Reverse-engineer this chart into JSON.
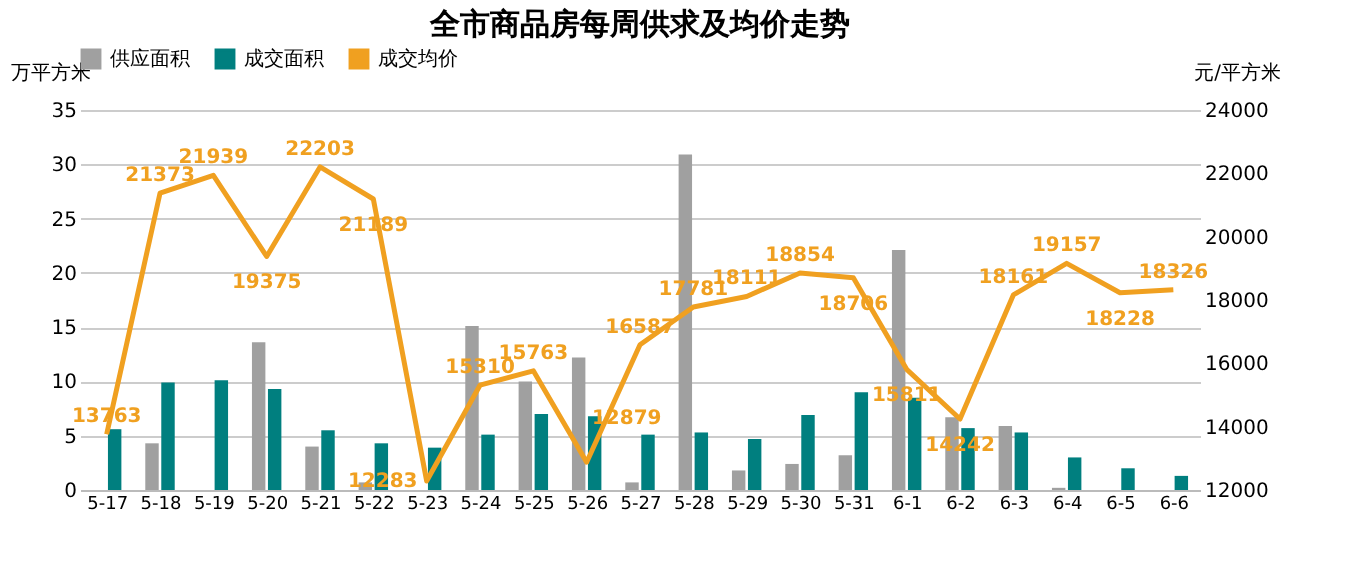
{
  "chart_data": {
    "type": "bar",
    "title": "全市商品房每周供求及均价走势",
    "ylabel": "万平方米",
    "y2label": "元/平方米",
    "categories": [
      "5-17",
      "5-18",
      "5-19",
      "5-20",
      "5-21",
      "5-22",
      "5-23",
      "5-24",
      "5-25",
      "5-26",
      "5-27",
      "5-28",
      "5-29",
      "5-30",
      "5-31",
      "6-1",
      "6-2",
      "6-3",
      "6-4",
      "6-5",
      "6-6"
    ],
    "series": [
      {
        "name": "供应面积",
        "color": "#a0a0a0",
        "values": [
          0,
          4.3,
          0,
          13.6,
          4.0,
          0.7,
          0,
          15.1,
          10.0,
          12.2,
          0.7,
          30.9,
          1.8,
          2.4,
          3.2,
          22.1,
          6.7,
          5.9,
          0.2,
          0,
          0
        ]
      },
      {
        "name": "成交面积",
        "color": "#007f7f",
        "values": [
          5.6,
          9.9,
          10.1,
          9.3,
          5.5,
          4.3,
          3.9,
          5.1,
          7.0,
          6.8,
          5.1,
          5.3,
          4.7,
          6.9,
          9.0,
          8.5,
          5.7,
          5.3,
          3.0,
          2.0,
          1.3
        ]
      },
      {
        "name": "成交均价",
        "type": "line",
        "axis": "y2",
        "color": "#f0a020",
        "data_labels": true,
        "values": [
          13763,
          21373,
          21939,
          19375,
          22203,
          21189,
          12283,
          15310,
          15763,
          12879,
          16587,
          17781,
          18111,
          18854,
          18706,
          15811,
          14242,
          18161,
          19157,
          18228,
          18326
        ]
      }
    ],
    "ylim": [
      0,
      35
    ],
    "yticks": [
      0,
      5,
      10,
      15,
      20,
      25,
      30,
      35
    ],
    "y2lim": [
      12000,
      24000
    ],
    "y2ticks": [
      12000,
      14000,
      16000,
      18000,
      20000,
      22000,
      24000
    ],
    "grid": "y",
    "legend": "top"
  }
}
